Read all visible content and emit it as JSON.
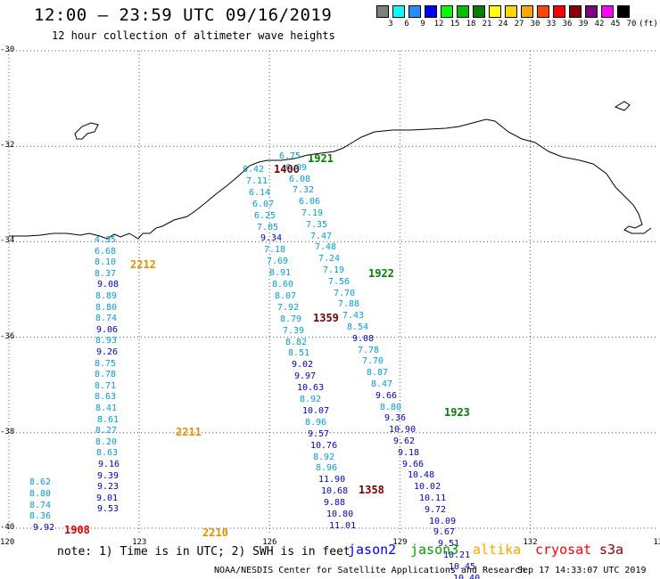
{
  "header": {
    "title": "12:00 – 23:59 UTC 09/16/2019",
    "subtitle": "12 hour collection of altimeter wave heights"
  },
  "colorbar": {
    "unit": "(ft)",
    "ticks": [
      "3",
      "6",
      "9",
      "12",
      "15",
      "18",
      "21",
      "24",
      "27",
      "30",
      "33",
      "36",
      "39",
      "42",
      "45",
      "70"
    ],
    "colors": [
      "#7f7f7f",
      "#00ffff",
      "#1e90ff",
      "#0000ff",
      "#00ff00",
      "#00c000",
      "#008000",
      "#ffff00",
      "#ffd700",
      "#ffa500",
      "#ff4500",
      "#ff0000",
      "#8b0000",
      "#800080",
      "#ff00ff",
      "#000000"
    ]
  },
  "map": {
    "lat_labels": [
      "-30",
      "-32",
      "-34",
      "-36",
      "-38",
      "-40"
    ],
    "lon_labels": [
      "120",
      "123",
      "126",
      "129",
      "132",
      "135"
    ]
  },
  "colors": {
    "l1": "#0000cd",
    "l2": "#00a0dc",
    "l3": "#0080c0",
    "time_orange": "#e69000",
    "time_darkred": "#7a0000",
    "time_green": "#008000",
    "time_red": "#e00000"
  },
  "tracks": [
    {
      "name": "track-2212",
      "time": "2212",
      "time_color": "time_orange",
      "values": [
        {
          "v": "4.95",
          "c": "l2"
        },
        {
          "v": "6.68",
          "c": "l2"
        },
        {
          "v": "8.10",
          "c": "l2"
        },
        {
          "v": "8.37",
          "c": "l2"
        },
        {
          "v": "9.08",
          "c": "l1"
        },
        {
          "v": "8.89",
          "c": "l2"
        },
        {
          "v": "8.80",
          "c": "l2"
        },
        {
          "v": "8.74",
          "c": "l2"
        },
        {
          "v": "9.06",
          "c": "l1"
        },
        {
          "v": "8.93",
          "c": "l2"
        },
        {
          "v": "9.26",
          "c": "l1"
        },
        {
          "v": "8.75",
          "c": "l2"
        },
        {
          "v": "8.78",
          "c": "l2"
        },
        {
          "v": "8.71",
          "c": "l2"
        },
        {
          "v": "8.63",
          "c": "l2"
        },
        {
          "v": "8.41",
          "c": "l2"
        },
        {
          "v": "8.61",
          "c": "l2"
        },
        {
          "v": "8.27",
          "c": "l2"
        },
        {
          "v": "8.20",
          "c": "l2"
        },
        {
          "v": "8.63",
          "c": "l2"
        },
        {
          "v": "9.16",
          "c": "l1"
        },
        {
          "v": "9.39",
          "c": "l1"
        },
        {
          "v": "9.23",
          "c": "l1"
        },
        {
          "v": "9.01",
          "c": "l1"
        },
        {
          "v": "9.53",
          "c": "l1"
        }
      ]
    },
    {
      "name": "track-1400",
      "time": "1400",
      "time_color": "time_darkred",
      "values": [
        {
          "v": "8.42",
          "c": "l2"
        },
        {
          "v": "7.11",
          "c": "l2"
        },
        {
          "v": "6.14",
          "c": "l2"
        },
        {
          "v": "6.07",
          "c": "l2"
        },
        {
          "v": "6.25",
          "c": "l2"
        },
        {
          "v": "7.05",
          "c": "l2"
        },
        {
          "v": "9.34",
          "c": "l1"
        },
        {
          "v": "7.18",
          "c": "l2"
        },
        {
          "v": "7.69",
          "c": "l2"
        },
        {
          "v": "8.91",
          "c": "l2"
        },
        {
          "v": "8.60",
          "c": "l2"
        },
        {
          "v": "8.07",
          "c": "l2"
        },
        {
          "v": "7.92",
          "c": "l2"
        },
        {
          "v": "8.79",
          "c": "l2"
        },
        {
          "v": "7.39",
          "c": "l2"
        },
        {
          "v": "8.82",
          "c": "l2"
        },
        {
          "v": "8.51",
          "c": "l2"
        },
        {
          "v": "9.02",
          "c": "l1"
        },
        {
          "v": "9.97",
          "c": "l1"
        },
        {
          "v": "10.63",
          "c": "l1"
        },
        {
          "v": "8.92",
          "c": "l2"
        },
        {
          "v": "10.07",
          "c": "l1"
        },
        {
          "v": "8.96",
          "c": "l2"
        },
        {
          "v": "9.57",
          "c": "l1"
        },
        {
          "v": "10.76",
          "c": "l1"
        },
        {
          "v": "8.92",
          "c": "l2"
        },
        {
          "v": "8.96",
          "c": "l2"
        },
        {
          "v": "11.90",
          "c": "l1"
        },
        {
          "v": "10.68",
          "c": "l1"
        },
        {
          "v": "9.88",
          "c": "l1"
        },
        {
          "v": "10.80",
          "c": "l1"
        },
        {
          "v": "11.01",
          "c": "l1"
        }
      ]
    },
    {
      "name": "track-1921",
      "time": "1921",
      "time_color": "time_green",
      "values": [
        {
          "v": "6.75",
          "c": "l2"
        },
        {
          "v": "6.09",
          "c": "l2"
        },
        {
          "v": "6.08",
          "c": "l2"
        },
        {
          "v": "7.32",
          "c": "l2"
        },
        {
          "v": "6.06",
          "c": "l2"
        },
        {
          "v": "7.19",
          "c": "l2"
        },
        {
          "v": "7.35",
          "c": "l2"
        },
        {
          "v": "7.47",
          "c": "l2"
        },
        {
          "v": "7.48",
          "c": "l2"
        },
        {
          "v": "7.24",
          "c": "l2"
        },
        {
          "v": "7.19",
          "c": "l2"
        },
        {
          "v": "7.56",
          "c": "l2"
        },
        {
          "v": "7.70",
          "c": "l2"
        },
        {
          "v": "7.88",
          "c": "l2"
        },
        {
          "v": "7.43",
          "c": "l2"
        },
        {
          "v": "8.54",
          "c": "l2"
        },
        {
          "v": "9.08",
          "c": "l1"
        },
        {
          "v": "7.78",
          "c": "l2"
        },
        {
          "v": "7.70",
          "c": "l2"
        },
        {
          "v": "8.87",
          "c": "l2"
        },
        {
          "v": "8.47",
          "c": "l2"
        },
        {
          "v": "9.66",
          "c": "l1"
        },
        {
          "v": "8.80",
          "c": "l2"
        },
        {
          "v": "9.36",
          "c": "l1"
        },
        {
          "v": "10.90",
          "c": "l1"
        },
        {
          "v": "9.62",
          "c": "l1"
        },
        {
          "v": "9.18",
          "c": "l1"
        },
        {
          "v": "9.66",
          "c": "l1"
        },
        {
          "v": "10.48",
          "c": "l1"
        },
        {
          "v": "10.02",
          "c": "l1"
        },
        {
          "v": "10.11",
          "c": "l1"
        },
        {
          "v": "9.72",
          "c": "l1"
        },
        {
          "v": "10.09",
          "c": "l1"
        },
        {
          "v": "9.67",
          "c": "l1"
        },
        {
          "v": "9.51",
          "c": "l1"
        },
        {
          "v": "10.21",
          "c": "l1"
        },
        {
          "v": "10.45",
          "c": "l1"
        },
        {
          "v": "10.40",
          "c": "l1"
        },
        {
          "v": "10.64",
          "c": "l1"
        },
        {
          "v": "10.99",
          "c": "l1"
        }
      ]
    },
    {
      "name": "track-1908",
      "time": "1908",
      "time_color": "time_red",
      "values": [
        {
          "v": "8.62",
          "c": "l2"
        },
        {
          "v": "8.80",
          "c": "l2"
        },
        {
          "v": "8.74",
          "c": "l2"
        },
        {
          "v": "8.36",
          "c": "l2"
        },
        {
          "v": "9.92",
          "c": "l1"
        }
      ]
    }
  ],
  "time_labels": [
    {
      "name": "time-label-2211",
      "text": "2211",
      "color": "time_orange"
    },
    {
      "name": "time-label-2210",
      "text": "2210",
      "color": "time_orange"
    },
    {
      "name": "time-label-1922",
      "text": "1922",
      "color": "time_green"
    },
    {
      "name": "time-label-1359",
      "text": "1359",
      "color": "time_darkred"
    },
    {
      "name": "time-label-1923",
      "text": "1923",
      "color": "time_green"
    },
    {
      "name": "time-label-1358",
      "text": "1358",
      "color": "time_darkred"
    }
  ],
  "footer": {
    "note": "note: 1) Time is in UTC; 2) SWH is in feet",
    "legend": [
      {
        "label": "jason2",
        "color": "#0000ff"
      },
      {
        "label": "jason3",
        "color": "#00a000"
      },
      {
        "label": "altika",
        "color": "#ffa500"
      },
      {
        "label": "cryosat",
        "color": "#ff0000"
      },
      {
        "label": "s3a",
        "color": "#8b0000"
      }
    ],
    "credit": "NOAA/NESDIS Center for Satellite Applications and Research",
    "timestamp": "Sep 17 14:33:07 UTC 2019"
  }
}
